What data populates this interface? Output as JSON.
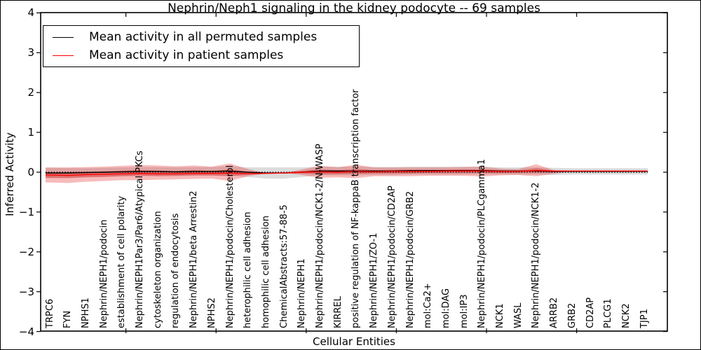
{
  "chart_data": {
    "type": "line",
    "title": "Nephrin/Neph1 signaling in the kidney podocyte -- 69 samples",
    "xlabel": "Cellular Entities",
    "ylabel": "Inferred Activity",
    "ylim": [
      -4,
      4
    ],
    "yticks": [
      4,
      3,
      2,
      1,
      0,
      -1,
      -2,
      -3,
      -4
    ],
    "grid": false,
    "legend_position": "upper left",
    "legend": [
      {
        "label": "Mean activity in all permuted samples",
        "color": "#000000"
      },
      {
        "label": "Mean activity in patient samples",
        "color": "#ff0000"
      }
    ],
    "zero_line": {
      "y": 0,
      "style": "dotted",
      "color": "#000000"
    },
    "categories": [
      "TRPC6",
      "FYN",
      "NPHS1",
      "Nephrin/NEPH1/podocin",
      "establishment of cell polarity",
      "Nephrin/NEPH1Par3/Par6/Atypical PKCs",
      "cytoskeleton organization",
      "regulation of endocytosis",
      "Nephrin/NEPH1/beta Arrestin2",
      "NPHS2",
      "Nephrin/NEPH1/podocin/Cholesterol",
      "heterophilic cell adhesion",
      "homophilic cell adhesion",
      "ChemicalAbstracts:57-88-5",
      "Nephrin/NEPH1",
      "Nephrin/NEPH1/podocin/NCK1-2/N-WASP",
      "KIRREL",
      "positive regulation of NF-kappaB transcription factor",
      "Nephrin/NEPH1/ZO-1",
      "Nephrin/NEPH1/podocin/CD2AP",
      "Nephrin/NEPH1/podocin/GRB2",
      "mol:Ca2+",
      "mol:DAG",
      "mol:IP3",
      "Nephrin/NEPH1/podocin/PLCgamma1",
      "NCK1",
      "WASL",
      "Nephrin/NEPH1/podocin/NCK1-2",
      "ARRB2",
      "GRB2",
      "CD2AP",
      "PLCG1",
      "NCK2",
      "TJP1"
    ],
    "series": [
      {
        "name": "Mean activity in all permuted samples",
        "color": "#000000",
        "values": [
          -0.02,
          -0.02,
          -0.01,
          0.0,
          0.01,
          0.02,
          0.02,
          0.01,
          0.02,
          0.02,
          0.03,
          0.0,
          -0.02,
          -0.02,
          0.0,
          0.03,
          0.03,
          0.03,
          0.03,
          0.03,
          0.04,
          0.04,
          0.04,
          0.04,
          0.04,
          0.03,
          0.03,
          0.03,
          0.02,
          0.02,
          0.02,
          0.02,
          0.02,
          0.02
        ]
      },
      {
        "name": "Mean activity in patient samples",
        "color": "#ff0000",
        "values": [
          -0.07,
          -0.08,
          -0.06,
          -0.05,
          -0.04,
          -0.03,
          -0.04,
          -0.04,
          -0.03,
          -0.03,
          -0.02,
          -0.04,
          -0.03,
          -0.02,
          0.0,
          0.01,
          0.0,
          0.02,
          0.01,
          0.02,
          0.02,
          0.02,
          0.03,
          0.03,
          0.03,
          0.02,
          0.02,
          0.04,
          0.03,
          0.03,
          0.03,
          0.03,
          0.03,
          0.03
        ]
      }
    ],
    "bands": [
      {
        "name": "permuted-sample-range",
        "color": "rgba(128,128,128,0.28)",
        "low": [
          -0.15,
          -0.14,
          -0.12,
          -0.11,
          -0.1,
          -0.09,
          -0.09,
          -0.1,
          -0.09,
          -0.09,
          -0.09,
          -0.12,
          -0.16,
          -0.16,
          -0.12,
          -0.08,
          -0.08,
          -0.08,
          -0.07,
          -0.07,
          -0.06,
          -0.06,
          -0.06,
          -0.06,
          -0.06,
          -0.06,
          -0.06,
          -0.06,
          -0.07,
          -0.06,
          -0.06,
          -0.06,
          -0.06,
          -0.06
        ],
        "high": [
          0.11,
          0.1,
          0.1,
          0.11,
          0.12,
          0.13,
          0.13,
          0.12,
          0.13,
          0.13,
          0.15,
          0.12,
          0.12,
          0.12,
          0.12,
          0.14,
          0.14,
          0.14,
          0.13,
          0.13,
          0.14,
          0.14,
          0.14,
          0.14,
          0.14,
          0.12,
          0.12,
          0.12,
          0.11,
          0.1,
          0.1,
          0.1,
          0.1,
          0.1
        ]
      },
      {
        "name": "patient-sample-range-outer",
        "color": "rgba(235,50,50,0.33)",
        "low": [
          -0.26,
          -0.27,
          -0.24,
          -0.22,
          -0.2,
          -0.2,
          -0.19,
          -0.18,
          -0.17,
          -0.16,
          -0.22,
          -0.1,
          -0.03,
          -0.02,
          -0.07,
          -0.14,
          -0.13,
          -0.15,
          -0.1,
          -0.1,
          -0.1,
          -0.09,
          -0.09,
          -0.09,
          -0.11,
          -0.08,
          -0.07,
          -0.1,
          -0.04,
          0.03,
          0.03,
          0.03,
          0.03,
          0.03
        ],
        "high": [
          0.12,
          0.12,
          0.13,
          0.14,
          0.16,
          0.18,
          0.17,
          0.15,
          0.17,
          0.14,
          0.22,
          0.08,
          -0.03,
          -0.02,
          0.07,
          0.16,
          0.12,
          0.19,
          0.12,
          0.12,
          0.12,
          0.12,
          0.12,
          0.13,
          0.14,
          0.09,
          0.08,
          0.2,
          0.05,
          0.03,
          0.03,
          0.03,
          0.03,
          0.03
        ]
      },
      {
        "name": "patient-sample-range-inner",
        "color": "rgba(215,20,20,0.36)",
        "low": [
          -0.14,
          -0.15,
          -0.13,
          -0.12,
          -0.1,
          -0.09,
          -0.1,
          -0.09,
          -0.08,
          -0.08,
          -0.1,
          -0.06,
          -0.03,
          -0.02,
          -0.03,
          -0.05,
          -0.05,
          -0.04,
          -0.03,
          -0.03,
          -0.03,
          -0.02,
          -0.02,
          -0.02,
          -0.02,
          -0.02,
          -0.01,
          -0.01,
          0.0,
          0.03,
          0.03,
          0.03,
          0.03,
          0.03
        ],
        "high": [
          0.0,
          0.0,
          0.01,
          0.02,
          0.04,
          0.05,
          0.04,
          0.03,
          0.05,
          0.03,
          0.07,
          0.01,
          -0.03,
          -0.02,
          0.03,
          0.07,
          0.05,
          0.08,
          0.05,
          0.06,
          0.06,
          0.06,
          0.06,
          0.07,
          0.07,
          0.05,
          0.04,
          0.1,
          0.04,
          0.03,
          0.03,
          0.03,
          0.03,
          0.03
        ]
      }
    ]
  }
}
